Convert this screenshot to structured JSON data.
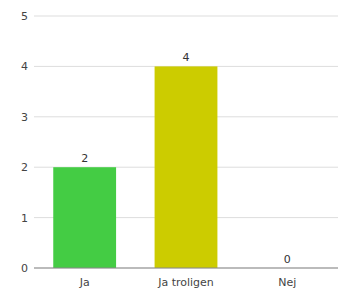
{
  "chart_data": {
    "type": "bar",
    "categories": [
      "Ja",
      "Ja troligen",
      "Nej"
    ],
    "values": [
      2,
      4,
      0
    ],
    "colors": [
      "#44cc44",
      "#cccc00",
      "#cccccc"
    ],
    "ylim": [
      0,
      5
    ],
    "yticks": [
      0,
      1,
      2,
      3,
      4,
      5
    ],
    "grid": true,
    "data_labels": true
  }
}
